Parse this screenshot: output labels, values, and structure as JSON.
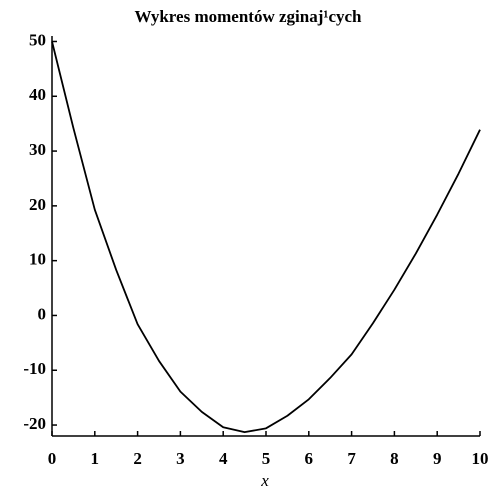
{
  "chart_data": {
    "type": "line",
    "title": "Wykres momentów zginaj¹cych",
    "x_label": "x",
    "x": [
      0,
      0.5,
      1,
      1.5,
      2,
      2.5,
      3,
      3.5,
      4,
      4.5,
      5,
      5.5,
      6,
      6.5,
      7,
      7.5,
      8,
      8.5,
      9,
      9.5,
      10
    ],
    "series": [
      {
        "color": "#000000",
        "values": [
          50,
          34.2,
          19.3,
          8.3,
          -1.6,
          -8.3,
          -13.9,
          -17.6,
          -20.4,
          -21.3,
          -20.6,
          -18.3,
          -15.3,
          -11.4,
          -7.1,
          -1.4,
          4.7,
          11.3,
          18.4,
          25.9,
          33.9
        ]
      }
    ],
    "xlim": [
      0,
      10
    ],
    "xticks": [
      0,
      1,
      2,
      3,
      4,
      5,
      6,
      7,
      8,
      9,
      10
    ],
    "ylim": [
      -22,
      51
    ],
    "yticks": [
      -20,
      -10,
      0,
      10,
      20,
      30,
      40,
      50
    ]
  }
}
